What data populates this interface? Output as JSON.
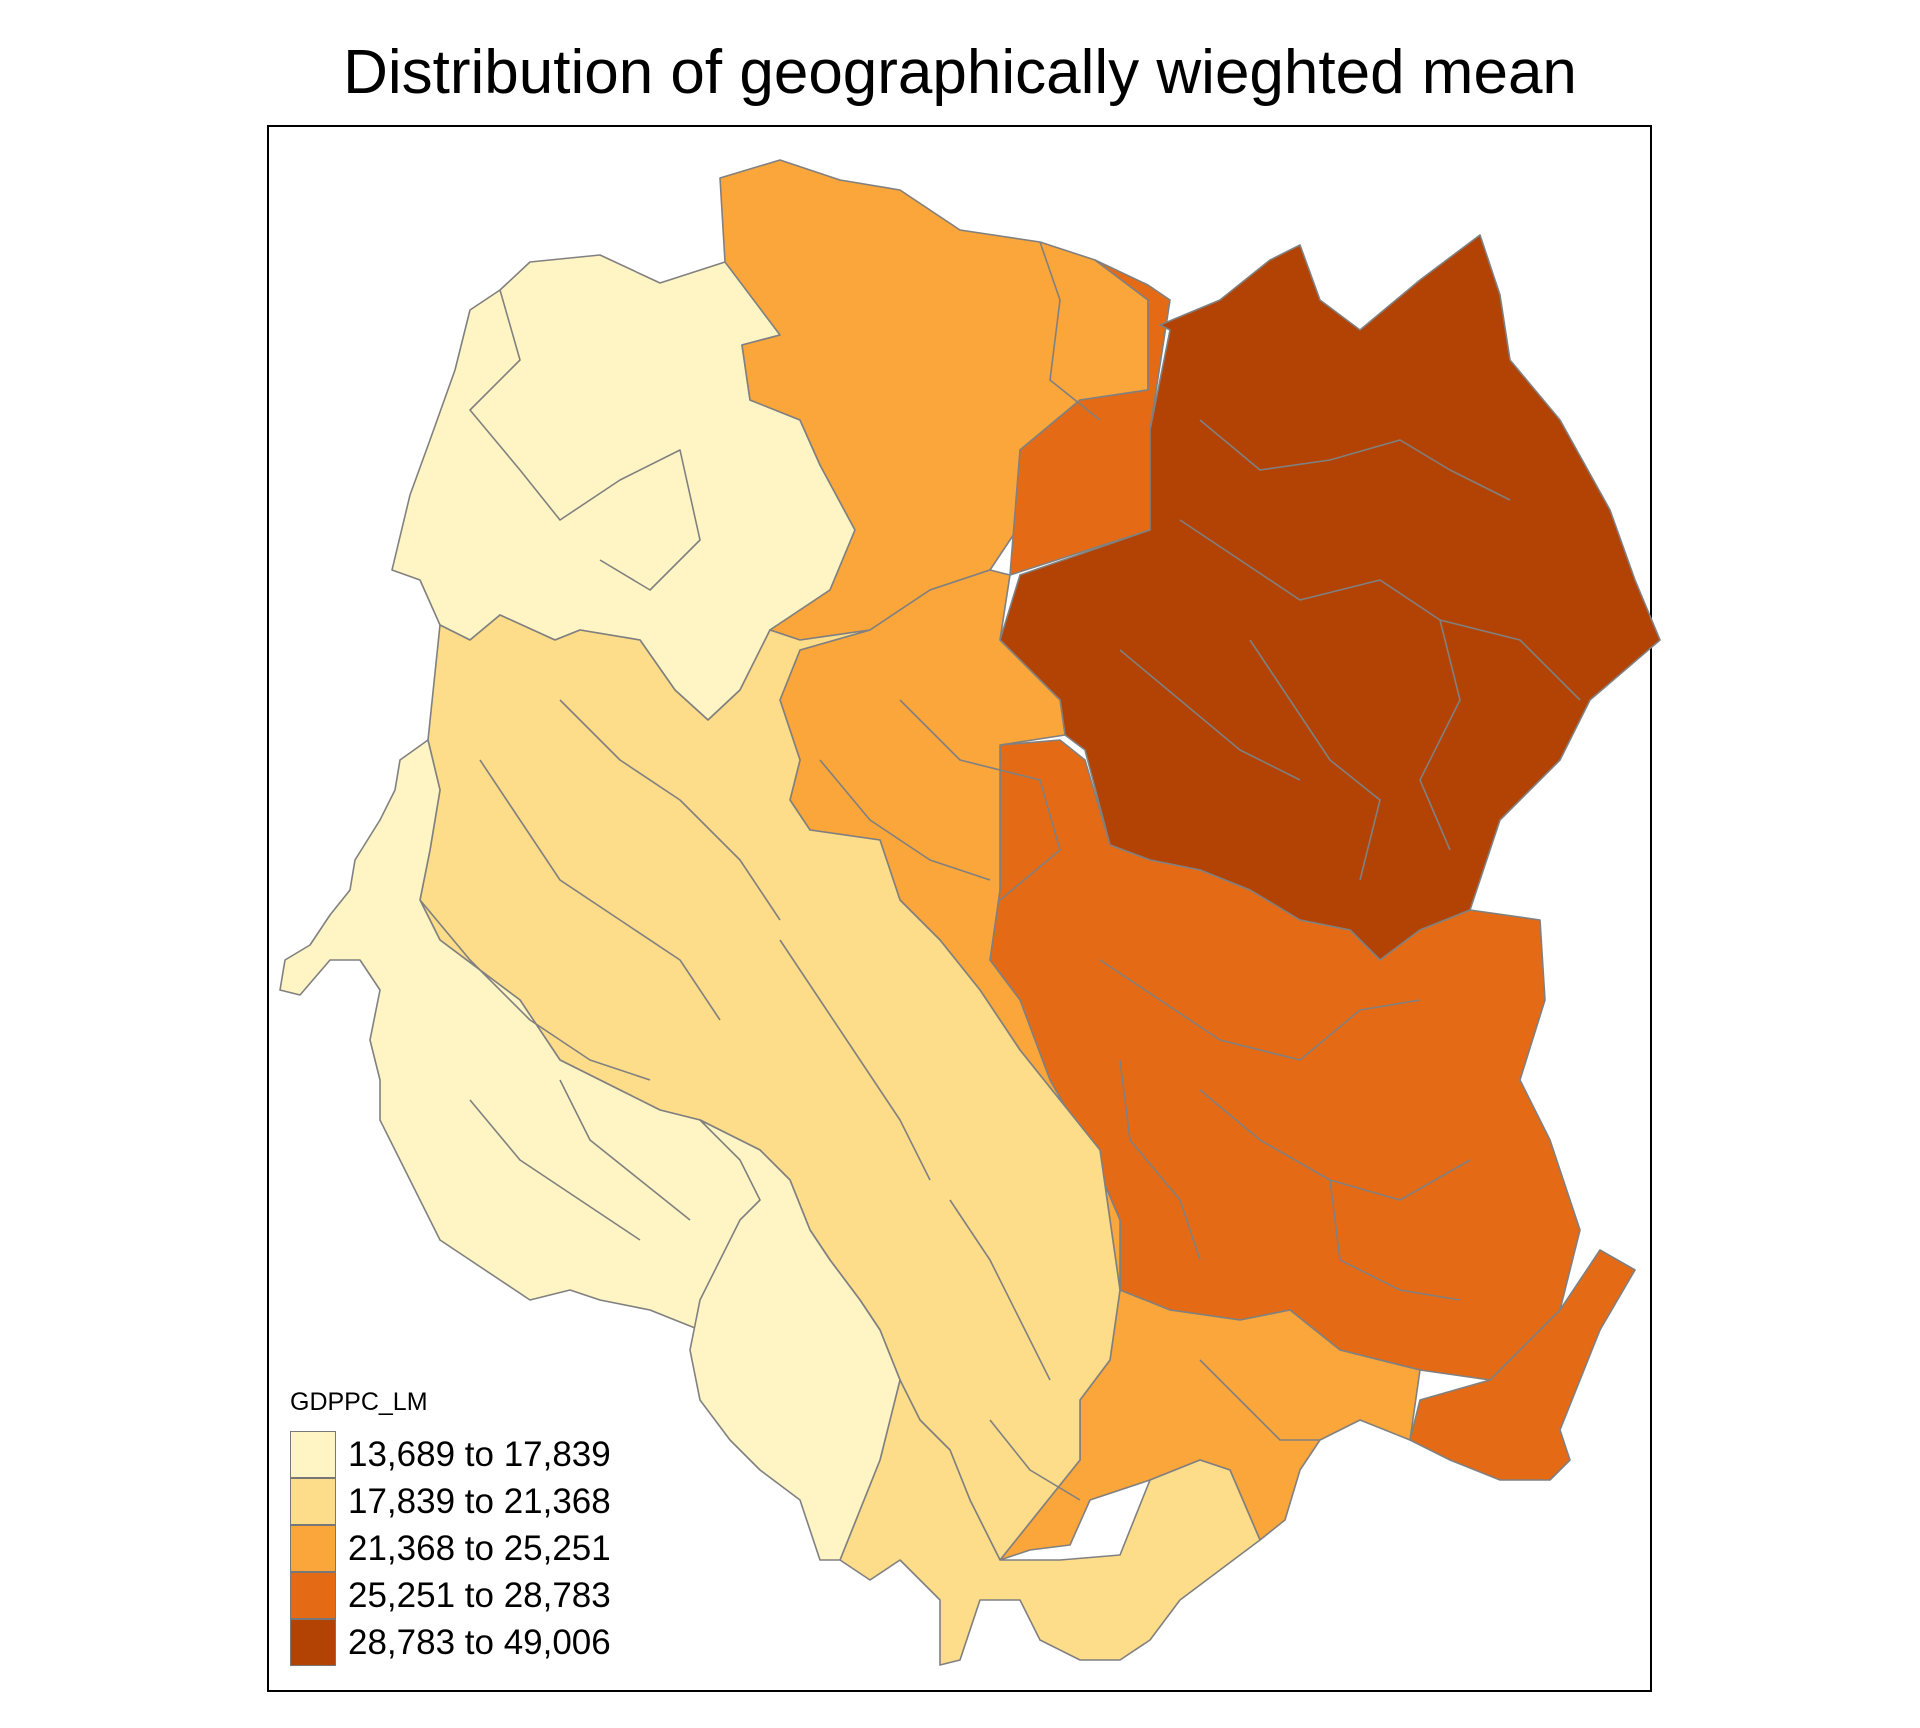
{
  "title": "Distribution of geographically wieghted mean",
  "legend": {
    "title": "GDPPC_LM",
    "items": [
      {
        "label": "13,689 to 17,839",
        "color": "#fff5c4"
      },
      {
        "label": "17,839 to 21,368",
        "color": "#fddc8a"
      },
      {
        "label": "21,368 to 25,251",
        "color": "#faa63a"
      },
      {
        "label": "25,251 to 28,783",
        "color": "#e46a16"
      },
      {
        "label": "28,783 to 49,006",
        "color": "#b24304"
      }
    ]
  },
  "colors": {
    "boundary": "#808080",
    "frame": "#000000",
    "background": "#ffffff"
  }
}
